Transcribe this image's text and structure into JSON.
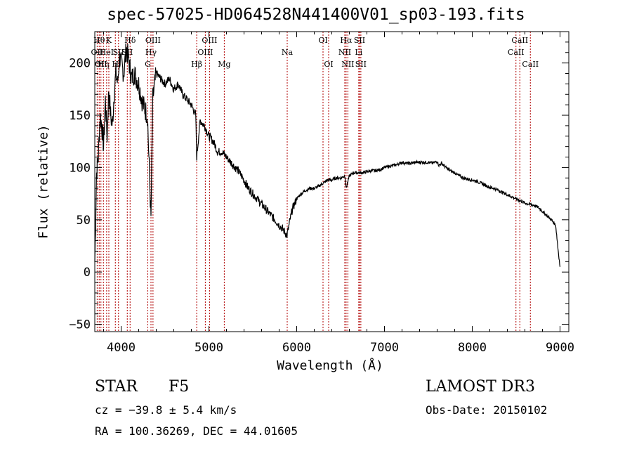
{
  "chart_data": {
    "type": "line",
    "title": "spec-57025-HD064528N441400V01_sp03-193.fits",
    "xlabel": "Wavelength (Å)",
    "ylabel": "Flux (relative)",
    "xlim": [
      3700,
      9100
    ],
    "ylim": [
      -57,
      230
    ],
    "x_ticks": [
      4000,
      5000,
      6000,
      7000,
      8000,
      9000
    ],
    "y_ticks": [
      -50,
      0,
      50,
      100,
      150,
      200
    ],
    "series": [
      {
        "x": [
          3700,
          3720,
          3740,
          3760,
          3780,
          3800,
          3820,
          3840,
          3860,
          3880,
          3900,
          3920,
          3940,
          3960,
          3980,
          4000,
          4030,
          4060,
          4090,
          4120,
          4150,
          4200,
          4250,
          4300,
          4340,
          4360,
          4400,
          4450,
          4500,
          4550,
          4600,
          4650,
          4700,
          4750,
          4800,
          4850,
          4861,
          4900,
          4950,
          5000,
          5050,
          5100,
          5150,
          5200,
          5250,
          5300,
          5350,
          5400,
          5450,
          5500,
          5550,
          5600,
          5650,
          5700,
          5750,
          5800,
          5850,
          5890,
          5920,
          5950,
          6000,
          6050,
          6100,
          6150,
          6200,
          6250,
          6300,
          6350,
          6400,
          6450,
          6500,
          6550,
          6563,
          6600,
          6650,
          6700,
          6750,
          6800,
          6850,
          6900,
          6950,
          7000,
          7050,
          7100,
          7150,
          7200,
          7250,
          7300,
          7350,
          7400,
          7450,
          7500,
          7550,
          7600,
          7620,
          7650,
          7700,
          7750,
          7800,
          7850,
          7900,
          7950,
          8000,
          8050,
          8100,
          8150,
          8200,
          8250,
          8300,
          8350,
          8400,
          8450,
          8500,
          8550,
          8600,
          8650,
          8700,
          8750,
          8800,
          8850,
          8900,
          8950,
          8980,
          9000
        ],
        "y": [
          10,
          95,
          110,
          150,
          140,
          120,
          165,
          130,
          175,
          150,
          140,
          170,
          190,
          180,
          205,
          200,
          190,
          215,
          200,
          185,
          190,
          180,
          160,
          150,
          50,
          165,
          190,
          185,
          180,
          185,
          175,
          180,
          170,
          165,
          160,
          150,
          110,
          145,
          140,
          130,
          125,
          115,
          115,
          110,
          105,
          100,
          95,
          88,
          80,
          75,
          70,
          65,
          60,
          55,
          50,
          45,
          40,
          35,
          48,
          60,
          70,
          75,
          78,
          80,
          80,
          82,
          85,
          88,
          88,
          90,
          90,
          92,
          80,
          92,
          95,
          95,
          95,
          96,
          97,
          97,
          98,
          100,
          101,
          102,
          103,
          105,
          104,
          104,
          105,
          105,
          105,
          105,
          104,
          106,
          102,
          104,
          100,
          97,
          95,
          92,
          90,
          89,
          88,
          87,
          85,
          83,
          81,
          80,
          78,
          76,
          74,
          72,
          70,
          68,
          66,
          65,
          64,
          62,
          58,
          54,
          50,
          45,
          20,
          5
        ]
      }
    ],
    "lines": [
      {
        "w": 3750,
        "label": "Hθ",
        "row": 1
      },
      {
        "w": 3727,
        "label": "OII",
        "row": 2
      },
      {
        "w": 3770,
        "label": "OII",
        "row": 3
      },
      {
        "w": 3798,
        "label": "Hη",
        "row": 3
      },
      {
        "w": 3835,
        "label": "HeI",
        "row": 2
      },
      {
        "w": 3860,
        "label": "K",
        "row": 1
      },
      {
        "w": 3934,
        "label": "H",
        "row": 3
      },
      {
        "w": 3970,
        "label": "SII",
        "row": 2
      },
      {
        "w": 4070,
        "label": "SII",
        "row": 2
      },
      {
        "w": 4102,
        "label": "Hδ",
        "row": 1
      },
      {
        "w": 4304,
        "label": "G",
        "row": 3
      },
      {
        "w": 4340,
        "label": "Hγ",
        "row": 2
      },
      {
        "w": 4363,
        "label": "OIII",
        "row": 1
      },
      {
        "w": 4861,
        "label": "Hβ",
        "row": 3
      },
      {
        "w": 4959,
        "label": "OIII",
        "row": 2
      },
      {
        "w": 5007,
        "label": "OIII",
        "row": 1
      },
      {
        "w": 5175,
        "label": "Mg",
        "row": 3
      },
      {
        "w": 5892,
        "label": "Na",
        "row": 2
      },
      {
        "w": 6300,
        "label": "OI",
        "row": 1
      },
      {
        "w": 6364,
        "label": "OI",
        "row": 3
      },
      {
        "w": 6548,
        "label": "NII",
        "row": 2
      },
      {
        "w": 6563,
        "label": "Hα",
        "row": 1
      },
      {
        "w": 6583,
        "label": "NII",
        "row": 3
      },
      {
        "w": 6707,
        "label": "Li",
        "row": 2
      },
      {
        "w": 6716,
        "label": "SII",
        "row": 1
      },
      {
        "w": 6731,
        "label": "SII",
        "row": 3
      },
      {
        "w": 8498,
        "label": "CaII",
        "row": 2
      },
      {
        "w": 8542,
        "label": "CaII",
        "row": 1
      },
      {
        "w": 8662,
        "label": "CaII",
        "row": 3
      }
    ]
  },
  "info": {
    "object_class": "STAR",
    "subclass": "F5",
    "survey": "LAMOST DR3",
    "redshift": "cz = −39.8 ± 5.4 km/s",
    "obs_date": "Obs-Date: 20150102",
    "coords": "RA = 100.36269, DEC =  44.01605"
  }
}
